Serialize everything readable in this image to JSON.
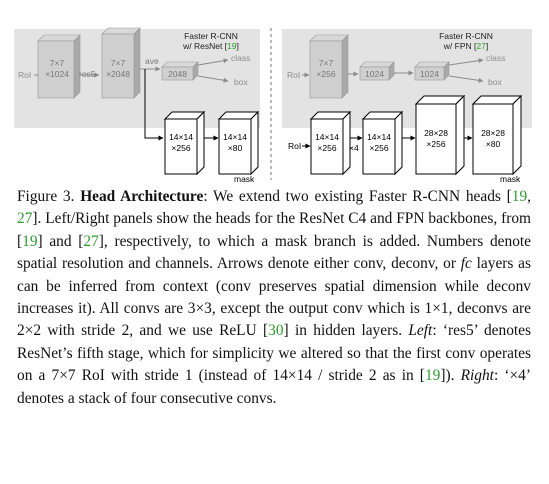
{
  "figure": {
    "left_panel": {
      "title_line1": "Faster R-CNN",
      "title_line2": "w/ ResNet [",
      "title_cite": "19",
      "title_close": "]",
      "roi": "RoI",
      "block1_line1": "7×7",
      "block1_line2": "×1024",
      "res5": "res5",
      "block2_line1": "7×7",
      "block2_line2": "×2048",
      "ave": "ave",
      "fc_2048": "2048",
      "class": "class",
      "box": "box",
      "mask_block1_line1": "14×14",
      "mask_block1_line2": "×256",
      "mask_block2_line1": "14×14",
      "mask_block2_line2": "×80",
      "mask": "mask"
    },
    "right_panel": {
      "title_line1": "Faster R-CNN",
      "title_line2": "w/ FPN [",
      "title_cite": "27",
      "title_close": "]",
      "roi_top": "RoI",
      "block1_line1": "7×7",
      "block1_line2": "×256",
      "fc_1024a": "1024",
      "fc_1024b": "1024",
      "class": "class",
      "box": "box",
      "roi_bottom": "RoI",
      "mask_block1_line1": "14×14",
      "mask_block1_line2": "×256",
      "x4": "×4",
      "mask_block2_line1": "14×14",
      "mask_block2_line2": "×256",
      "mask_block3_line1": "28×28",
      "mask_block3_line2": "×256",
      "mask_block4_line1": "28×28",
      "mask_block4_line2": "×80",
      "mask": "mask"
    }
  },
  "caption": {
    "label": "Figure 3.",
    "title": "Head Architecture",
    "t1": ": We extend two existing Faster R-CNN heads [",
    "c1": "19",
    "t2": ", ",
    "c2": "27",
    "t3": "]. Left/Right panels show the heads for the ResNet C4 and FPN backbones, from [",
    "c3": "19",
    "t4": "] and [",
    "c4": "27",
    "t5": "], respectively, to which a mask branch is added. Numbers denote spatial resolution and channels. Arrows denote either conv, deconv, or ",
    "fc": "fc",
    "t6": " layers as can be inferred from context (conv preserves spatial dimension while deconv increases it). All convs are 3×3, except the output conv which is 1×1, deconvs are 2×2 with stride 2, and we use ReLU [",
    "c5": "30",
    "t7": "] in hidden layers. ",
    "left": "Left",
    "t8": ": ‘res5’ denotes ResNet’s fifth stage, which for simplicity we altered so that the first conv operates on a 7×7 RoI with stride 1 (instead of 14×14 / stride 2 as in [",
    "c6": "19",
    "t9": "]). ",
    "right": "Right",
    "t10": ": ‘×4’ denotes a stack of four consecutive convs."
  },
  "colors": {
    "gray_band": "#e3e3e3",
    "gray_block": "#cfcfcf",
    "gray_text": "#8c8c8c",
    "cite_green": "#2e9b2e"
  }
}
